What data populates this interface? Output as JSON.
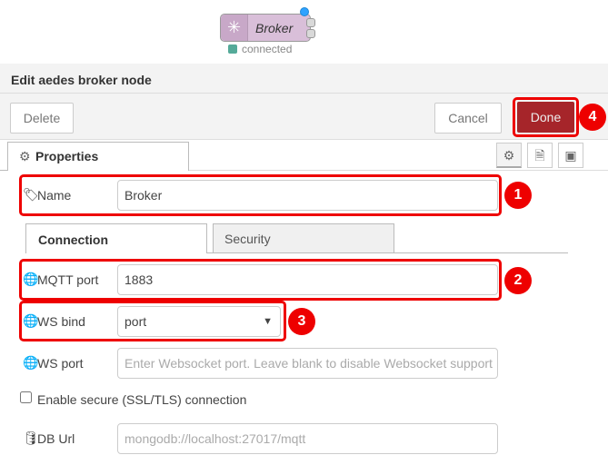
{
  "node": {
    "label": "Broker",
    "status": "connected",
    "status_color": "#5a9"
  },
  "editor": {
    "title": "Edit aedes broker node",
    "delete_label": "Delete",
    "cancel_label": "Cancel",
    "done_label": "Done",
    "accent": "#a6252a"
  },
  "tabs": {
    "properties": "Properties"
  },
  "fields": {
    "name_label": "Name",
    "name_value": "Broker",
    "connection_tab": "Connection",
    "security_tab": "Security",
    "mqtt_port_label": "MQTT port",
    "mqtt_port_value": "1883",
    "ws_bind_label": "WS bind",
    "ws_bind_value": "port",
    "ws_port_label": "WS port",
    "ws_port_placeholder": "Enter Websocket port. Leave blank to disable Websocket support",
    "ssl_label": "Enable secure (SSL/TLS) connection",
    "db_url_label": "DB Url",
    "db_url_placeholder": "mongodb://localhost:27017/mqtt"
  },
  "badges": [
    "1",
    "2",
    "3",
    "4"
  ]
}
